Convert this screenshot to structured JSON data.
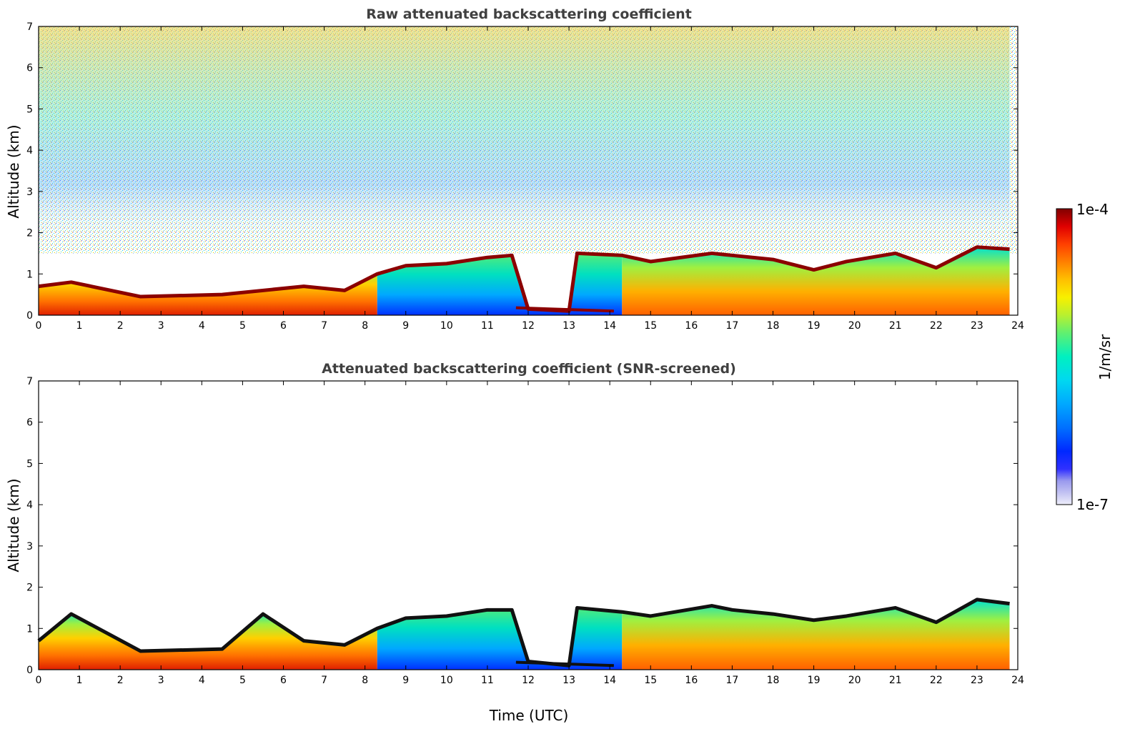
{
  "chart_data": [
    {
      "type": "heatmap",
      "title": "Raw attenuated backscattering coefficient",
      "xlabel": "",
      "ylabel": "Altitude (km)",
      "xlim": [
        0,
        24
      ],
      "ylim": [
        0,
        7
      ],
      "x_ticks": [
        "0",
        "1",
        "2",
        "3",
        "4",
        "5",
        "6",
        "7",
        "8",
        "9",
        "10",
        "11",
        "12",
        "13",
        "14",
        "15",
        "16",
        "17",
        "18",
        "19",
        "20",
        "21",
        "22",
        "23",
        "24"
      ],
      "y_ticks": [
        "0",
        "1",
        "2",
        "3",
        "4",
        "5",
        "6",
        "7"
      ],
      "grid": false,
      "layers": [
        {
          "x": [
            0,
            24
          ],
          "y_range_km": [
            0,
            1.5
          ],
          "description_value": "high near-surface backscatter"
        },
        {
          "x": [
            0,
            24
          ],
          "y_range_km": [
            1.5,
            7
          ],
          "description_value": "noisy background"
        }
      ],
      "cloud_top_km": [
        {
          "x": 0,
          "y": 0.7
        },
        {
          "x": 0.8,
          "y": 0.8
        },
        {
          "x": 2.5,
          "y": 0.45
        },
        {
          "x": 4.5,
          "y": 0.5
        },
        {
          "x": 6.5,
          "y": 0.7
        },
        {
          "x": 7.5,
          "y": 0.6
        },
        {
          "x": 8.3,
          "y": 1.0
        },
        {
          "x": 9.0,
          "y": 1.2
        },
        {
          "x": 10.0,
          "y": 1.25
        },
        {
          "x": 11.0,
          "y": 1.4
        },
        {
          "x": 11.6,
          "y": 1.45
        },
        {
          "x": 12.0,
          "y": 0.15
        },
        {
          "x": 13.0,
          "y": 0.1
        },
        {
          "x": 13.2,
          "y": 1.5
        },
        {
          "x": 14.3,
          "y": 1.45
        },
        {
          "x": 15.0,
          "y": 1.3
        },
        {
          "x": 16.5,
          "y": 1.5
        },
        {
          "x": 17.0,
          "y": 1.45
        },
        {
          "x": 18.0,
          "y": 1.35
        },
        {
          "x": 19.0,
          "y": 1.1
        },
        {
          "x": 19.8,
          "y": 1.3
        },
        {
          "x": 21.0,
          "y": 1.5
        },
        {
          "x": 22.0,
          "y": 1.15
        },
        {
          "x": 23.0,
          "y": 1.65
        },
        {
          "x": 23.8,
          "y": 1.6
        }
      ]
    },
    {
      "type": "heatmap",
      "title": "Attenuated backscattering coefficient (SNR-screened)",
      "xlabel": "Time (UTC)",
      "ylabel": "Altitude (km)",
      "xlim": [
        0,
        24
      ],
      "ylim": [
        0,
        7
      ],
      "x_ticks": [
        "0",
        "1",
        "2",
        "3",
        "4",
        "5",
        "6",
        "7",
        "8",
        "9",
        "10",
        "11",
        "12",
        "13",
        "14",
        "15",
        "16",
        "17",
        "18",
        "19",
        "20",
        "21",
        "22",
        "23",
        "24"
      ],
      "y_ticks": [
        "0",
        "1",
        "2",
        "3",
        "4",
        "5",
        "6",
        "7"
      ],
      "grid": false,
      "cloud_top_km": [
        {
          "x": 0,
          "y": 0.7
        },
        {
          "x": 0.8,
          "y": 1.35
        },
        {
          "x": 2.5,
          "y": 0.45
        },
        {
          "x": 4.5,
          "y": 0.5
        },
        {
          "x": 5.5,
          "y": 1.35
        },
        {
          "x": 6.5,
          "y": 0.7
        },
        {
          "x": 7.5,
          "y": 0.6
        },
        {
          "x": 8.3,
          "y": 1.0
        },
        {
          "x": 9.0,
          "y": 1.25
        },
        {
          "x": 10.0,
          "y": 1.3
        },
        {
          "x": 11.0,
          "y": 1.45
        },
        {
          "x": 11.6,
          "y": 1.45
        },
        {
          "x": 12.0,
          "y": 0.2
        },
        {
          "x": 13.0,
          "y": 0.1
        },
        {
          "x": 13.2,
          "y": 1.5
        },
        {
          "x": 14.3,
          "y": 1.4
        },
        {
          "x": 15.0,
          "y": 1.3
        },
        {
          "x": 16.5,
          "y": 1.55
        },
        {
          "x": 17.0,
          "y": 1.45
        },
        {
          "x": 18.0,
          "y": 1.35
        },
        {
          "x": 19.0,
          "y": 1.2
        },
        {
          "x": 19.8,
          "y": 1.3
        },
        {
          "x": 21.0,
          "y": 1.5
        },
        {
          "x": 22.0,
          "y": 1.15
        },
        {
          "x": 23.0,
          "y": 1.7
        },
        {
          "x": 23.8,
          "y": 1.6
        }
      ]
    }
  ],
  "colorbar": {
    "label": "1/m/sr",
    "max_label": "1e-4",
    "min_label": "1e-7",
    "scale": "log",
    "range": [
      1e-07,
      0.0001
    ],
    "colors": [
      "#e6e6f7",
      "#b8b8f0",
      "#8a8af0",
      "#0000ff",
      "#0033ff",
      "#0077ff",
      "#00aaff",
      "#00d8f0",
      "#00f0c8",
      "#40f080",
      "#90f040",
      "#d8f020",
      "#ffe000",
      "#ffaa00",
      "#ff7000",
      "#ff3000",
      "#e00000",
      "#8b0000"
    ]
  }
}
